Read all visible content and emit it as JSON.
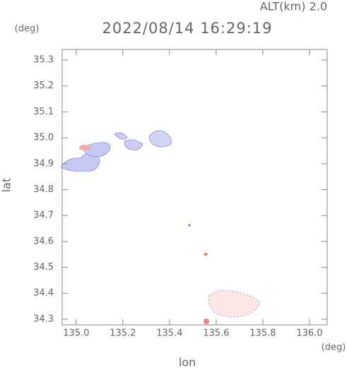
{
  "chart_data": {
    "type": "map",
    "title": "2022/08/14 16:29:19",
    "subtitle": "ALT(km)  2.0",
    "x_label": "lon",
    "y_label": "lat",
    "x_unit": "(deg)",
    "y_unit": "(deg)",
    "xlim": [
      134.94,
      136.076
    ],
    "ylim": [
      34.278,
      35.341
    ],
    "xticks": [
      {
        "value": 135.0,
        "label": "135.0"
      },
      135.2,
      135.4,
      135.6,
      135.8,
      {
        "value": 136.0,
        "label": "136.0"
      }
    ],
    "yticks": [
      34.3,
      34.4,
      34.5,
      34.6,
      34.7,
      34.8,
      34.9,
      {
        "value": 35.0,
        "label": "35.0"
      },
      35.1,
      35.2,
      35.3
    ]
  }
}
